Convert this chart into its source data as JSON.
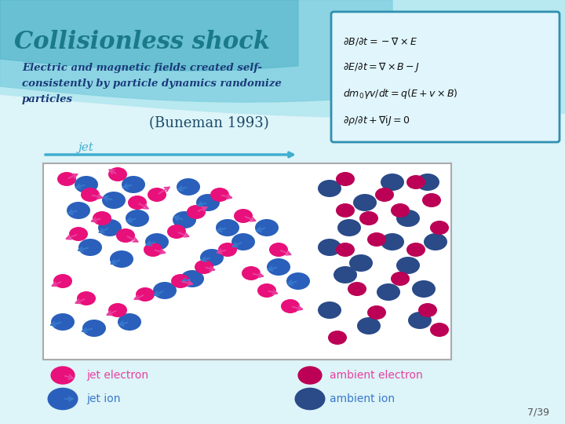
{
  "title": "Collisionless shock",
  "subtitle_line1": "Electric and magnetic fields created self-",
  "subtitle_line2": "consistently by particle dynamics randomize",
  "subtitle_line3": "particles",
  "buneman": "(Buneman 1993)",
  "jet_label": "jet",
  "eq1": "$\\partial B / \\partial t = -\\nabla \\times E$",
  "eq2": "$\\partial E / \\partial t = \\nabla \\times B - J$",
  "eq3": "$dm_0\\gamma v / dt = q(E + v \\times B)$",
  "eq4": "$\\partial\\rho / \\partial t + \\nabla{\\rm i}J = 0$",
  "bg_light": "#ddf4f8",
  "bg_mid": "#b8e8f0",
  "bg_wave1": "#82d0e0",
  "bg_wave2": "#5ab8cc",
  "title_color": "#1a7a8a",
  "subtitle_color": "#1a3a7a",
  "buneman_color": "#1a4a6a",
  "jet_color": "#40aed0",
  "eq_box_bg": "#e0f5fc",
  "eq_box_edge": "#3090b0",
  "particle_box_bg": "#ffffff",
  "particle_box_edge": "#aaaaaa",
  "jet_electron_color": "#e8107a",
  "jet_ion_color": "#2a60bb",
  "ambient_electron_color": "#bb0055",
  "ambient_ion_color": "#2a4a88",
  "arrow_je_color": "#e840a0",
  "arrow_ji_color": "#3878cc",
  "legend_je_text": "#e840a0",
  "legend_ji_text": "#3878cc",
  "page_num": "7/39",
  "page_num_color": "#555555"
}
